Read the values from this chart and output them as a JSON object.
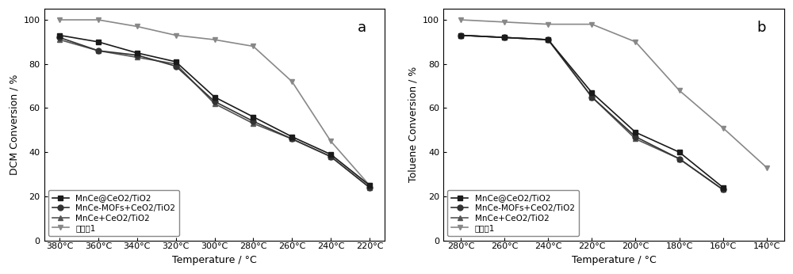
{
  "chart_a": {
    "title": "a",
    "xlabel": "Temperature / °C",
    "ylabel": "DCM Conversion / %",
    "x_labels": [
      "380°C",
      "360°C",
      "340°C",
      "320°C",
      "300°C",
      "280°C",
      "260°C",
      "240°C",
      "220°C"
    ],
    "x_vals": [
      380,
      360,
      340,
      320,
      300,
      280,
      260,
      240,
      220
    ],
    "series": [
      {
        "label": "MnCe@CeO2/TiO2",
        "values": [
          93,
          90,
          85,
          81,
          65,
          56,
          47,
          39,
          25
        ],
        "color": "#1a1a1a",
        "marker": "s",
        "linestyle": "-",
        "zorder": 4
      },
      {
        "label": "MnCe-MOFs+CeO2/TiO2",
        "values": [
          92,
          86,
          84,
          79,
          63,
          54,
          46,
          38,
          24
        ],
        "color": "#333333",
        "marker": "o",
        "linestyle": "-",
        "zorder": 3
      },
      {
        "label": "MnCe+CeO2/TiO2",
        "values": [
          91,
          86,
          83,
          80,
          62,
          53,
          46,
          38,
          24
        ],
        "color": "#555555",
        "marker": "^",
        "linestyle": "-",
        "zorder": 2
      },
      {
        "label": "实施例1",
        "values": [
          100,
          100,
          97,
          93,
          91,
          88,
          72,
          45,
          25
        ],
        "color": "#888888",
        "marker": "v",
        "linestyle": "-",
        "zorder": 1
      }
    ],
    "ylim": [
      0,
      105
    ],
    "yticks": [
      0,
      20,
      40,
      60,
      80,
      100
    ],
    "legend_loc": "lower left"
  },
  "chart_b": {
    "title": "b",
    "xlabel": "Temperature / °C",
    "ylabel": "Toluene Conversion / %",
    "x_labels": [
      "280°C",
      "260°C",
      "240°C",
      "220°C",
      "200°C",
      "180°C",
      "160°C",
      "140°C"
    ],
    "x_vals": [
      280,
      260,
      240,
      220,
      200,
      180,
      160,
      140
    ],
    "series": [
      {
        "label": "MnCe@CeO2/TiO2",
        "values": [
          93,
          92,
          91,
          67,
          49,
          40,
          24,
          null
        ],
        "color": "#1a1a1a",
        "marker": "s",
        "linestyle": "-",
        "zorder": 4
      },
      {
        "label": "MnCe-MOFs+CeO2/TiO2",
        "values": [
          93,
          92,
          91,
          65,
          47,
          37,
          23,
          null
        ],
        "color": "#333333",
        "marker": "o",
        "linestyle": "-",
        "zorder": 3
      },
      {
        "label": "MnCe+CeO2/TiO2",
        "values": [
          93,
          92,
          91,
          65,
          46,
          37,
          23,
          null
        ],
        "color": "#555555",
        "marker": "^",
        "linestyle": "-",
        "zorder": 2
      },
      {
        "label": "实施例1",
        "values": [
          100,
          99,
          98,
          98,
          90,
          68,
          51,
          33
        ],
        "color": "#888888",
        "marker": "v",
        "linestyle": "-",
        "zorder": 1
      }
    ],
    "ylim": [
      0,
      105
    ],
    "yticks": [
      0,
      20,
      40,
      60,
      80,
      100
    ],
    "legend_loc": "lower left"
  },
  "fig_bgcolor": "#ffffff",
  "axes_bgcolor": "#ffffff",
  "fontsize_label": 9,
  "fontsize_tick": 8,
  "fontsize_legend": 7.5,
  "fontsize_title": 13,
  "linewidth": 1.2,
  "markersize": 5
}
